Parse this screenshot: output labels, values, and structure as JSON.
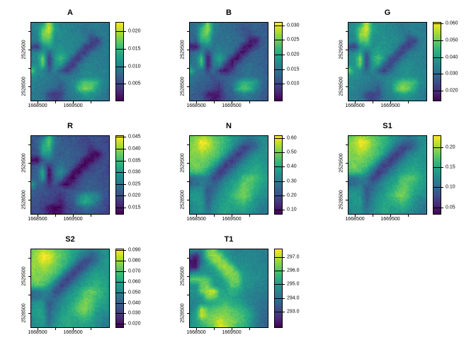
{
  "figure": {
    "background": "#ffffff"
  },
  "chart_data": {
    "type": "heatmap",
    "layout": {
      "rows": 3,
      "cols": 3,
      "note": "8 raster panels, last grid cell empty",
      "legend_position": "right-of-each-panel"
    },
    "palette": {
      "name": "viridis",
      "stops": [
        "#440154",
        "#482878",
        "#3e4a89",
        "#31688e",
        "#26828e",
        "#1f9e89",
        "#35b779",
        "#6dcd59",
        "#b4de2c",
        "#fde725"
      ]
    },
    "axes": {
      "x": {
        "min": 1668300,
        "max": 1670540,
        "ticks": [
          {
            "v": 1668500,
            "label": "1668500"
          },
          {
            "v": 1669000,
            "label": ""
          },
          {
            "v": 1669500,
            "label": "1669500"
          },
          {
            "v": 1670000,
            "label": ""
          }
        ]
      },
      "y": {
        "min": 2528100,
        "max": 2530250,
        "ticks": [
          {
            "v": 2530000,
            "label": ""
          },
          {
            "v": 2529500,
            "label": "2529500"
          },
          {
            "v": 2529000,
            "label": ""
          },
          {
            "v": 2528500,
            "label": "2528500"
          }
        ]
      }
    },
    "grids": {
      "vis": [
        [
          0.46,
          0.45,
          0.5,
          0.88,
          0.52,
          0.46,
          0.45,
          0.43,
          0.41,
          0.39,
          0.41,
          0.43,
          0.41,
          0.39
        ],
        [
          0.43,
          0.48,
          0.72,
          0.95,
          0.55,
          0.46,
          0.45,
          0.43,
          0.41,
          0.36,
          0.39,
          0.41,
          0.39,
          0.36
        ],
        [
          0.41,
          0.46,
          0.8,
          0.85,
          0.5,
          0.48,
          0.46,
          0.45,
          0.43,
          0.39,
          0.31,
          0.39,
          0.41,
          0.39
        ],
        [
          0.43,
          0.41,
          0.7,
          0.74,
          0.48,
          0.46,
          0.48,
          0.46,
          0.45,
          0.41,
          0.2,
          0.15,
          0.36,
          0.41
        ],
        [
          0.2,
          0.15,
          0.46,
          0.55,
          0.48,
          0.5,
          0.48,
          0.46,
          0.41,
          0.18,
          0.15,
          0.31,
          0.39,
          0.41
        ],
        [
          0.41,
          0.46,
          0.55,
          0.3,
          0.5,
          0.55,
          0.5,
          0.46,
          0.2,
          0.15,
          0.36,
          0.41,
          0.41,
          0.39
        ],
        [
          0.43,
          0.5,
          0.8,
          0.15,
          0.55,
          0.7,
          0.5,
          0.2,
          0.15,
          0.36,
          0.41,
          0.43,
          0.41,
          0.39
        ],
        [
          0.46,
          0.48,
          0.74,
          0.18,
          0.5,
          0.55,
          0.25,
          0.15,
          0.36,
          0.43,
          0.46,
          0.43,
          0.41,
          0.41
        ],
        [
          0.78,
          0.5,
          0.46,
          0.3,
          0.46,
          0.25,
          0.15,
          0.31,
          0.41,
          0.46,
          0.46,
          0.43,
          0.43,
          0.41
        ],
        [
          0.5,
          0.46,
          0.43,
          0.41,
          0.36,
          0.41,
          0.39,
          0.41,
          0.43,
          0.46,
          0.48,
          0.46,
          0.43,
          0.41
        ],
        [
          0.46,
          0.43,
          0.41,
          0.39,
          0.36,
          0.31,
          0.41,
          0.46,
          0.6,
          0.74,
          0.7,
          0.64,
          0.46,
          0.41
        ],
        [
          0.43,
          0.41,
          0.39,
          0.36,
          0.31,
          0.25,
          0.39,
          0.43,
          0.7,
          0.8,
          0.74,
          0.55,
          0.43,
          0.39
        ],
        [
          0.41,
          0.39,
          0.36,
          0.2,
          0.15,
          0.2,
          0.36,
          0.41,
          0.46,
          0.55,
          0.5,
          0.46,
          0.41,
          0.36
        ],
        [
          0.39,
          0.41,
          0.39,
          0.25,
          0.18,
          0.25,
          0.36,
          0.39,
          0.41,
          0.43,
          0.46,
          0.41,
          0.39,
          0.36
        ]
      ],
      "ndvi": [
        [
          0.75,
          0.8,
          0.85,
          0.8,
          0.75,
          0.7,
          0.65,
          0.55,
          0.5,
          0.45,
          0.4,
          0.45,
          0.5,
          0.48
        ],
        [
          0.78,
          0.85,
          1.0,
          0.95,
          0.8,
          0.72,
          0.65,
          0.55,
          0.45,
          0.35,
          0.28,
          0.35,
          0.45,
          0.5
        ],
        [
          0.8,
          0.85,
          0.95,
          0.9,
          0.78,
          0.7,
          0.62,
          0.5,
          0.3,
          0.18,
          0.25,
          0.35,
          0.48,
          0.52
        ],
        [
          0.82,
          0.8,
          0.85,
          0.8,
          0.75,
          0.68,
          0.55,
          0.3,
          0.15,
          0.25,
          0.4,
          0.48,
          0.5,
          0.5
        ],
        [
          0.8,
          0.78,
          0.8,
          0.75,
          0.7,
          0.55,
          0.3,
          0.15,
          0.25,
          0.4,
          0.5,
          0.55,
          0.52,
          0.5
        ],
        [
          0.75,
          0.8,
          0.75,
          0.72,
          0.55,
          0.3,
          0.15,
          0.25,
          0.4,
          0.5,
          0.55,
          0.58,
          0.55,
          0.52
        ],
        [
          0.7,
          0.72,
          0.7,
          0.55,
          0.35,
          0.15,
          0.25,
          0.4,
          0.5,
          0.55,
          0.6,
          0.62,
          0.58,
          0.52
        ],
        [
          0.35,
          0.38,
          0.42,
          0.4,
          0.2,
          0.25,
          0.4,
          0.5,
          0.55,
          0.7,
          0.75,
          0.7,
          0.6,
          0.55
        ],
        [
          0.3,
          0.35,
          0.4,
          0.35,
          0.3,
          0.4,
          0.5,
          0.55,
          0.62,
          0.75,
          0.72,
          0.65,
          0.58,
          0.52
        ],
        [
          0.45,
          0.5,
          0.48,
          0.25,
          0.35,
          0.45,
          0.52,
          0.6,
          0.7,
          0.78,
          0.72,
          0.6,
          0.55,
          0.5
        ],
        [
          0.5,
          0.55,
          0.5,
          0.28,
          0.4,
          0.5,
          0.55,
          0.65,
          0.75,
          0.8,
          0.7,
          0.55,
          0.5,
          0.48
        ],
        [
          0.48,
          0.52,
          0.55,
          0.3,
          0.45,
          0.52,
          0.58,
          0.6,
          0.65,
          0.7,
          0.6,
          0.5,
          0.45,
          0.42
        ],
        [
          0.45,
          0.5,
          0.52,
          0.35,
          0.48,
          0.55,
          0.6,
          0.55,
          0.58,
          0.6,
          0.55,
          0.48,
          0.42,
          0.4
        ],
        [
          0.42,
          0.48,
          0.5,
          0.4,
          0.5,
          0.55,
          0.58,
          0.55,
          0.52,
          0.55,
          0.5,
          0.45,
          0.4,
          0.38
        ]
      ],
      "temp": [
        [
          0.5,
          0.48,
          0.45,
          0.75,
          0.8,
          0.55,
          0.48,
          0.45,
          0.42,
          0.45,
          0.46,
          0.45,
          0.44,
          0.42
        ],
        [
          0.3,
          0.1,
          0.4,
          0.78,
          0.85,
          0.8,
          0.55,
          0.48,
          0.45,
          0.46,
          0.46,
          0.45,
          0.44,
          0.42
        ],
        [
          0.05,
          0.03,
          0.35,
          0.6,
          0.82,
          0.85,
          0.78,
          0.52,
          0.48,
          0.48,
          0.47,
          0.46,
          0.44,
          0.42
        ],
        [
          0.08,
          0.06,
          0.45,
          0.52,
          0.6,
          0.82,
          0.85,
          0.78,
          0.52,
          0.5,
          0.48,
          0.46,
          0.45,
          0.43
        ],
        [
          0.45,
          0.5,
          0.52,
          0.5,
          0.52,
          0.62,
          0.82,
          0.82,
          0.75,
          0.52,
          0.5,
          0.48,
          0.46,
          0.44
        ],
        [
          0.75,
          0.78,
          0.76,
          0.72,
          0.52,
          0.54,
          0.65,
          0.8,
          0.78,
          0.55,
          0.5,
          0.48,
          0.46,
          0.44
        ],
        [
          0.5,
          0.52,
          0.75,
          0.78,
          0.54,
          0.52,
          0.56,
          0.75,
          0.72,
          0.52,
          0.5,
          0.46,
          0.44,
          0.42
        ],
        [
          0.48,
          0.5,
          0.78,
          0.88,
          0.95,
          0.6,
          0.58,
          0.62,
          0.58,
          0.5,
          0.46,
          0.44,
          0.42,
          0.4
        ],
        [
          0.46,
          0.48,
          0.52,
          0.8,
          0.75,
          0.62,
          0.6,
          0.58,
          0.55,
          0.48,
          0.44,
          0.42,
          0.4,
          0.38
        ],
        [
          0.44,
          0.46,
          0.5,
          0.55,
          0.6,
          0.65,
          0.68,
          0.62,
          0.58,
          0.52,
          0.45,
          0.4,
          0.38,
          0.36
        ],
        [
          0.42,
          0.52,
          0.9,
          0.7,
          0.72,
          0.75,
          0.78,
          0.72,
          0.68,
          0.62,
          0.52,
          0.42,
          0.36,
          0.34
        ],
        [
          0.44,
          0.58,
          0.95,
          0.78,
          0.8,
          0.82,
          0.8,
          0.76,
          0.72,
          0.68,
          0.58,
          0.44,
          0.35,
          0.32
        ],
        [
          0.46,
          0.56,
          0.7,
          0.76,
          0.84,
          0.92,
          0.86,
          0.8,
          0.74,
          0.68,
          0.56,
          0.42,
          0.34,
          0.31
        ],
        [
          0.5,
          0.55,
          0.62,
          0.7,
          0.8,
          0.96,
          0.88,
          0.78,
          0.7,
          0.62,
          0.52,
          0.42,
          0.36,
          0.33
        ]
      ]
    },
    "panels": [
      {
        "title": "A",
        "grid": "vis",
        "gain": 1.0,
        "bias": 0.0,
        "legend": {
          "min": 0.0,
          "max": 0.0227,
          "ticks": [
            {
              "v": 0.02,
              "label": "0.020"
            },
            {
              "v": 0.015,
              "label": "0.015"
            },
            {
              "v": 0.01,
              "label": "0.010"
            },
            {
              "v": 0.005,
              "label": "0.005"
            }
          ]
        }
      },
      {
        "title": "B",
        "grid": "vis",
        "gain": 1.05,
        "bias": -0.12,
        "legend": {
          "min": 0.004,
          "max": 0.0311,
          "ticks": [
            {
              "v": 0.03,
              "label": "0.030"
            },
            {
              "v": 0.025,
              "label": "0.025"
            },
            {
              "v": 0.02,
              "label": "0.020"
            },
            {
              "v": 0.015,
              "label": "0.015"
            },
            {
              "v": 0.01,
              "label": "0.010"
            }
          ]
        }
      },
      {
        "title": "G",
        "grid": "vis",
        "gain": 1.0,
        "bias": 0.03,
        "legend": {
          "min": 0.0137,
          "max": 0.0609,
          "ticks": [
            {
              "v": 0.06,
              "label": "0.060"
            },
            {
              "v": 0.05,
              "label": "0.050"
            },
            {
              "v": 0.04,
              "label": "0.040"
            },
            {
              "v": 0.03,
              "label": "0.030"
            },
            {
              "v": 0.02,
              "label": "0.020"
            }
          ]
        }
      },
      {
        "title": "R",
        "grid": "vis",
        "gain": 0.95,
        "bias": -0.15,
        "legend": {
          "min": 0.012,
          "max": 0.0457,
          "ticks": [
            {
              "v": 0.045,
              "label": "0.045"
            },
            {
              "v": 0.04,
              "label": "0.040"
            },
            {
              "v": 0.035,
              "label": "0.035"
            },
            {
              "v": 0.03,
              "label": "0.030"
            },
            {
              "v": 0.025,
              "label": "0.025"
            },
            {
              "v": 0.02,
              "label": "0.020"
            },
            {
              "v": 0.015,
              "label": "0.015"
            }
          ]
        }
      },
      {
        "title": "N",
        "grid": "ndvi",
        "gain": 1.0,
        "bias": 0.0,
        "legend": {
          "min": 0.067,
          "max": 0.619,
          "ticks": [
            {
              "v": 0.6,
              "label": "0.60"
            },
            {
              "v": 0.5,
              "label": "0.50"
            },
            {
              "v": 0.4,
              "label": "0.40"
            },
            {
              "v": 0.3,
              "label": "0.30"
            },
            {
              "v": 0.2,
              "label": "0.20"
            },
            {
              "v": 0.1,
              "label": "0.10"
            }
          ]
        }
      },
      {
        "title": "S1",
        "grid": "ndvi",
        "gain": 1.0,
        "bias": 0.0,
        "legend": {
          "min": 0.032,
          "max": 0.2296,
          "ticks": [
            {
              "v": 0.2,
              "label": "0.20"
            },
            {
              "v": 0.15,
              "label": "0.15"
            },
            {
              "v": 0.1,
              "label": "0.10"
            },
            {
              "v": 0.05,
              "label": "0.05"
            }
          ]
        }
      },
      {
        "title": "S2",
        "grid": "ndvi",
        "gain": 1.0,
        "bias": 0.02,
        "legend": {
          "min": 0.0162,
          "max": 0.0915,
          "ticks": [
            {
              "v": 0.09,
              "label": "0.090"
            },
            {
              "v": 0.08,
              "label": "0.080"
            },
            {
              "v": 0.07,
              "label": "0.070"
            },
            {
              "v": 0.06,
              "label": "0.060"
            },
            {
              "v": 0.05,
              "label": "0.050"
            },
            {
              "v": 0.04,
              "label": "0.040"
            },
            {
              "v": 0.03,
              "label": "0.030"
            },
            {
              "v": 0.02,
              "label": "0.020"
            }
          ]
        }
      },
      {
        "title": "T1",
        "grid": "temp",
        "gain": 1.0,
        "bias": 0.0,
        "legend": {
          "min": 291.8,
          "max": 297.6,
          "ticks": [
            {
              "v": 297.0,
              "label": "297.0"
            },
            {
              "v": 296.0,
              "label": "296.0"
            },
            {
              "v": 295.0,
              "label": "295.0"
            },
            {
              "v": 294.0,
              "label": "294.0"
            },
            {
              "v": 293.0,
              "label": "293.0"
            }
          ]
        }
      }
    ]
  }
}
